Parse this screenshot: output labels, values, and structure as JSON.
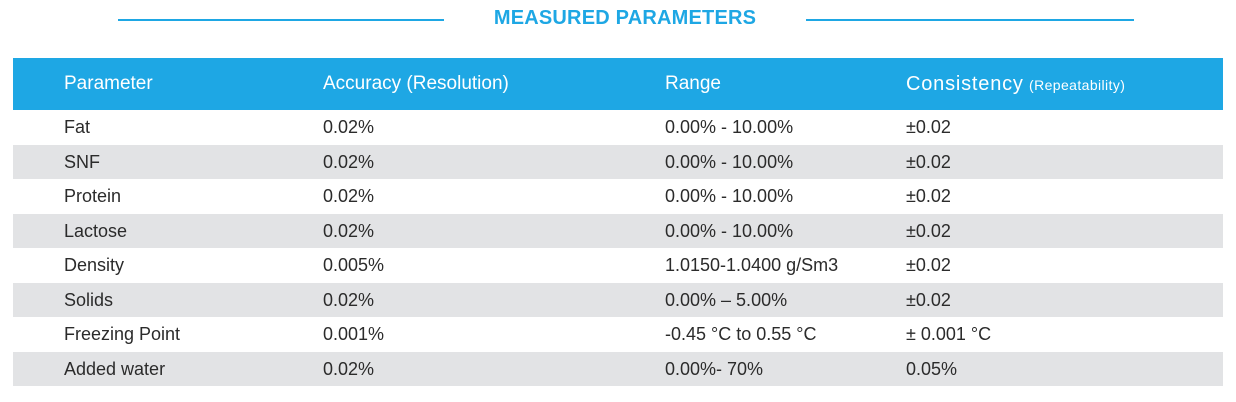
{
  "title": "MEASURED PARAMETERS",
  "columns": {
    "parameter": "Parameter",
    "accuracy": "Accuracy (Resolution)",
    "range": "Range",
    "consistency": "Consistency",
    "consistency_sub": "(Repeatability)"
  },
  "rows": [
    {
      "parameter": "Fat",
      "accuracy": "0.02%",
      "range": "0.00% - 10.00%",
      "consistency": "±0.02"
    },
    {
      "parameter": "SNF",
      "accuracy": "0.02%",
      "range": "0.00% - 10.00%",
      "consistency": "±0.02"
    },
    {
      "parameter": "Protein",
      "accuracy": "0.02%",
      "range": "0.00% - 10.00%",
      "consistency": "±0.02"
    },
    {
      "parameter": "Lactose",
      "accuracy": "0.02%",
      "range": "0.00% - 10.00%",
      "consistency": "±0.02"
    },
    {
      "parameter": "Density",
      "accuracy": "0.005%",
      "range": "1.0150-1.0400 g/Sm3",
      "consistency": "±0.02"
    },
    {
      "parameter": "Solids",
      "accuracy": "0.02%",
      "range": "0.00% – 5.00%",
      "consistency": "±0.02"
    },
    {
      "parameter": "Freezing Point",
      "accuracy": "0.001%",
      "range": "-0.45 °C to 0.55 °C",
      "consistency": "± 0.001 °C"
    },
    {
      "parameter": "Added water",
      "accuracy": "0.02%",
      "range": "0.00%- 70%",
      "consistency": "0.05%"
    }
  ],
  "colors": {
    "accent": "#1ea7e4",
    "row_shade": "#e2e3e5",
    "text": "#2b2b2b"
  }
}
